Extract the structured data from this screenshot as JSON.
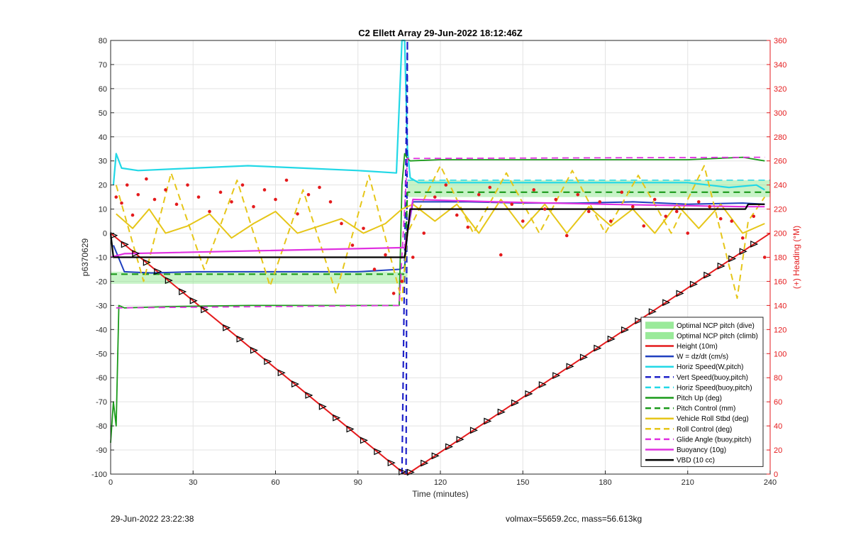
{
  "chart_data": {
    "type": "line",
    "title": "C2 Ellett Array 29-Jun-2022 18:12:46Z",
    "xlabel": "Time (minutes)",
    "ylabel": "p6370629",
    "y2label": "(+) Heading (°M)",
    "xlim": [
      0,
      240
    ],
    "ylim": [
      -100,
      80
    ],
    "y2lim": [
      0,
      360
    ],
    "xticks": [
      0,
      30,
      60,
      90,
      120,
      150,
      180,
      210,
      240
    ],
    "yticks": [
      -100,
      -90,
      -80,
      -70,
      -60,
      -50,
      -40,
      -30,
      -20,
      -10,
      0,
      10,
      20,
      30,
      40,
      50,
      60,
      70,
      80
    ],
    "y2ticks": [
      0,
      20,
      40,
      60,
      80,
      100,
      120,
      140,
      160,
      180,
      200,
      220,
      240,
      260,
      280,
      300,
      320,
      340,
      360
    ],
    "grid": true,
    "legend_position": "bottom-right",
    "bands": [
      {
        "name": "Optimal NCP pitch (dive)",
        "x": [
          0,
          108
        ],
        "y": [
          -21,
          -16
        ]
      },
      {
        "name": "Optimal NCP pitch (climb)",
        "x": [
          108,
          240
        ],
        "y": [
          15,
          22
        ]
      }
    ],
    "series": [
      {
        "name": "Height (10m)",
        "color": "#e41a1c",
        "dash": false,
        "width": 2,
        "x": [
          0,
          107,
          108,
          240
        ],
        "y": [
          0,
          -100,
          -100,
          0
        ]
      },
      {
        "name": "W = dz/dt (cm/s)",
        "color": "#1f3fbf",
        "dash": false,
        "width": 2,
        "x": [
          1,
          5,
          15,
          30,
          50,
          70,
          90,
          105,
          107,
          108,
          110,
          130,
          150,
          170,
          190,
          210,
          230,
          238
        ],
        "y": [
          -5,
          -16,
          -16.5,
          -16,
          -16,
          -16,
          -16,
          -15,
          -14,
          0,
          13,
          13,
          12.5,
          12.5,
          13,
          12,
          12.5,
          12
        ]
      },
      {
        "name": "Horiz Speed(W,pitch)",
        "color": "#22d8e6",
        "dash": false,
        "width": 2.2,
        "x": [
          1,
          2,
          4,
          10,
          30,
          50,
          70,
          90,
          104,
          106,
          107,
          108,
          109,
          112,
          130,
          150,
          170,
          190,
          210,
          225,
          235,
          238
        ],
        "y": [
          20,
          33,
          27,
          26,
          27,
          28,
          27,
          26,
          25,
          80,
          80,
          35,
          23,
          21,
          21,
          21,
          21,
          21,
          21,
          19,
          20,
          18
        ]
      },
      {
        "name": "Vert Speed(buoy,pitch)",
        "color": "#1f22c8",
        "dash": true,
        "width": 2.2,
        "x": [
          106,
          108,
          107.5
        ],
        "y": [
          -100,
          80,
          -100
        ]
      },
      {
        "name": "Horiz Speed(buoy,pitch)",
        "color": "#22d8e6",
        "dash": true,
        "width": 1.5,
        "x": [
          108,
          240
        ],
        "y": [
          22,
          22
        ]
      },
      {
        "name": "Pitch Up (deg)",
        "color": "#1a9a1a",
        "dash": false,
        "width": 1.8,
        "x": [
          0,
          1,
          2,
          3,
          5,
          20,
          50,
          80,
          105,
          106,
          107,
          108,
          109,
          120,
          150,
          180,
          210,
          230,
          238
        ],
        "y": [
          -87,
          -70,
          -80,
          -30,
          -31,
          -30.5,
          -30,
          -30,
          -30,
          20,
          33,
          31,
          30,
          30.5,
          30.5,
          30.5,
          30.5,
          31.5,
          30
        ]
      },
      {
        "name": "Pitch Control (mm)",
        "color": "#1a9a1a",
        "dash": true,
        "width": 2.2,
        "x": [
          0,
          107,
          108,
          240
        ],
        "y": [
          -17,
          -17,
          17,
          17
        ]
      },
      {
        "name": "Vehicle Roll Stbd (deg)",
        "color": "#e6c619",
        "dash": false,
        "width": 2,
        "x": [
          2,
          8,
          14,
          20,
          28,
          36,
          44,
          52,
          60,
          68,
          76,
          84,
          92,
          100,
          106,
          110,
          118,
          126,
          134,
          142,
          150,
          158,
          166,
          174,
          182,
          190,
          198,
          206,
          214,
          222,
          230,
          238
        ],
        "y": [
          8,
          2,
          10,
          0,
          3,
          8,
          -2,
          4,
          9,
          0,
          3,
          6,
          0,
          4,
          10,
          12,
          5,
          12,
          0,
          14,
          2,
          12,
          0,
          11,
          3,
          10,
          0,
          12,
          2,
          12,
          0,
          4
        ]
      },
      {
        "name": "Roll Control (deg)",
        "color": "#e6c619",
        "dash": true,
        "width": 2,
        "x": [
          2,
          12,
          22,
          34,
          46,
          58,
          70,
          82,
          94,
          106,
          108,
          120,
          132,
          144,
          156,
          168,
          180,
          192,
          204,
          216,
          228,
          232,
          238
        ],
        "y": [
          20,
          -20,
          25,
          -15,
          22,
          -22,
          18,
          -25,
          24,
          -28,
          0,
          28,
          0,
          25,
          0,
          26,
          0,
          24,
          0,
          28,
          -27,
          5,
          15
        ]
      },
      {
        "name": "Glide Angle (buoy,pitch)",
        "color": "#e031e0",
        "dash": true,
        "width": 1.8,
        "x": [
          2,
          105,
          108,
          238
        ],
        "y": [
          -31,
          -30,
          31,
          31.5
        ]
      },
      {
        "name": "Buoyancy (10g)",
        "color": "#e031e0",
        "dash": false,
        "width": 2.2,
        "x": [
          0,
          5,
          107,
          110,
          140,
          180,
          230,
          238
        ],
        "y": [
          -10,
          -8.5,
          -6,
          14,
          13,
          12,
          11,
          11
        ]
      },
      {
        "name": "VBD (10 cc)",
        "color": "#000000",
        "dash": false,
        "width": 2.2,
        "x": [
          0,
          1,
          2,
          107,
          109,
          231,
          232,
          238
        ],
        "y": [
          0,
          -10,
          -10,
          -10,
          10,
          10,
          12,
          12
        ]
      }
    ],
    "markers": {
      "series": "Height (10m)",
      "color": "#000000",
      "x": [
        1,
        5,
        9,
        13,
        17,
        21,
        26,
        30,
        34,
        42,
        47,
        52,
        57,
        62,
        67,
        72,
        77,
        82,
        87,
        92,
        97,
        102,
        106,
        109,
        114,
        118,
        123,
        127,
        132,
        137,
        142,
        147,
        152,
        157,
        162,
        167,
        172,
        177,
        182,
        187,
        192,
        197,
        202,
        207,
        212,
        217,
        222,
        226,
        230,
        234
      ]
    },
    "heading_dots": {
      "name": "Heading",
      "axis": "right",
      "color": "#e41a1c",
      "x": [
        2,
        4,
        6,
        8,
        10,
        13,
        16,
        20,
        24,
        28,
        32,
        36,
        40,
        44,
        48,
        52,
        56,
        60,
        64,
        68,
        72,
        76,
        80,
        84,
        88,
        92,
        96,
        100,
        103,
        106,
        110,
        114,
        118,
        122,
        126,
        130,
        134,
        138,
        142,
        146,
        150,
        154,
        158,
        162,
        166,
        170,
        174,
        178,
        182,
        186,
        190,
        194,
        198,
        202,
        206,
        210,
        214,
        218,
        222,
        226,
        230,
        234,
        238
      ],
      "y": [
        230,
        225,
        240,
        215,
        232,
        245,
        228,
        236,
        224,
        240,
        230,
        218,
        234,
        226,
        240,
        222,
        236,
        228,
        244,
        216,
        232,
        238,
        226,
        208,
        190,
        204,
        170,
        182,
        150,
        160,
        180,
        200,
        230,
        240,
        215,
        205,
        232,
        238,
        182,
        224,
        210,
        236,
        220,
        228,
        198,
        232,
        218,
        226,
        210,
        234,
        222,
        206,
        228,
        214,
        218,
        200,
        226,
        222,
        212,
        210,
        196,
        214,
        180
      ]
    }
  },
  "footer": {
    "timestamp": "29-Jun-2022 23:22:38",
    "mass_info": "volmax=55659.2cc, mass=56.613kg"
  }
}
